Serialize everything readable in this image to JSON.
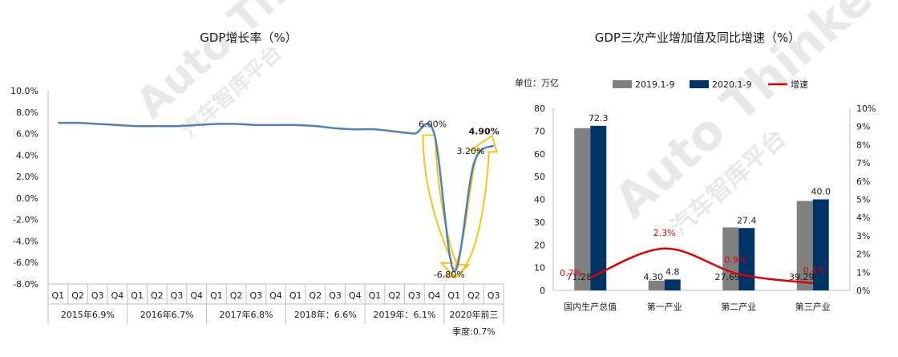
{
  "chart_data": [
    {
      "type": "line",
      "title": "GDP增长率（%）",
      "yticks": [
        "10.0%",
        "8.0%",
        "6.0%",
        "4.0%",
        "2.0%",
        "0.0%",
        "-2.0%",
        "-4.0%",
        "-6.0%",
        "-8.0%"
      ],
      "ylim": [
        -8,
        10
      ],
      "quarters": [
        "Q1",
        "Q2",
        "Q3",
        "Q4",
        "Q1",
        "Q2",
        "Q3",
        "Q4",
        "Q1",
        "Q2",
        "Q3",
        "Q4",
        "Q1",
        "Q2",
        "Q3",
        "Q4",
        "Q1",
        "Q2",
        "Q3",
        "Q4",
        "Q1",
        "Q2",
        "Q3"
      ],
      "groups": [
        {
          "label": "2015年6.9%",
          "count": 4
        },
        {
          "label": "2016年6.7%",
          "count": 4
        },
        {
          "label": "2017年6.8%",
          "count": 4
        },
        {
          "label": "2018年：6.6%",
          "count": 4
        },
        {
          "label": "2019年：6.1%",
          "count": 4
        },
        {
          "label": "2020年前三季度:0.7%",
          "count": 3
        }
      ],
      "series": [
        {
          "values": [
            7.0,
            7.0,
            6.9,
            6.8,
            6.7,
            6.7,
            6.7,
            6.8,
            6.9,
            6.9,
            6.8,
            6.8,
            6.8,
            6.7,
            6.5,
            6.4,
            6.4,
            6.2,
            6.0,
            6.0,
            -6.8,
            3.2,
            4.9
          ],
          "color": "#4f81bd"
        }
      ],
      "annotations": [
        {
          "text": "6.00%",
          "index": 19,
          "value": 6.0,
          "color": "#1a1a1a"
        },
        {
          "text": "-6.80%",
          "index": 20,
          "value": -6.8,
          "color": "#1a1a1a"
        },
        {
          "text": "3.20%",
          "index": 21,
          "value": 3.2,
          "color": "#1a1a1a"
        },
        {
          "text": "4.90%",
          "index": 22,
          "value": 4.9,
          "color": "#e00000"
        }
      ],
      "arrow_color": "#f5c518",
      "grid": false
    },
    {
      "type": "bar",
      "title": "GDP三次产业增加值及同比增速（%）",
      "unit_label": "单位：万亿",
      "categories": [
        "国内生产总值",
        "第一产业",
        "第二产业",
        "第三产业"
      ],
      "series": [
        {
          "name": "2019.1-9",
          "values": [
            71.28,
            4.3,
            27.69,
            39.29
          ],
          "labels": [
            "71.28",
            "4.30",
            "27.69",
            "39.29"
          ],
          "color": "#808080"
        },
        {
          "name": "2020.1-9",
          "values": [
            72.3,
            4.8,
            27.4,
            40.0
          ],
          "labels": [
            "72.3",
            "4.8",
            "27.4",
            "40.0"
          ],
          "color": "#003366"
        }
      ],
      "growth": {
        "name": "增速",
        "values": [
          0.7,
          2.3,
          0.9,
          0.4
        ],
        "labels": [
          "0.7%",
          "2.3%",
          "0.9%",
          "0.4%"
        ],
        "color": "#e00000"
      },
      "ylim": [
        0,
        80
      ],
      "yticks": [
        "0",
        "10",
        "20",
        "30",
        "40",
        "50",
        "60",
        "70",
        "80"
      ],
      "y2lim": [
        0,
        10
      ],
      "y2ticks": [
        "0%",
        "1%",
        "2%",
        "3%",
        "4%",
        "5%",
        "6%",
        "7%",
        "8%",
        "9%",
        "10%"
      ],
      "legend": "top"
    }
  ],
  "watermark": {
    "brand": "Auto Thinker",
    "subtitle": "汽车智库平台"
  }
}
